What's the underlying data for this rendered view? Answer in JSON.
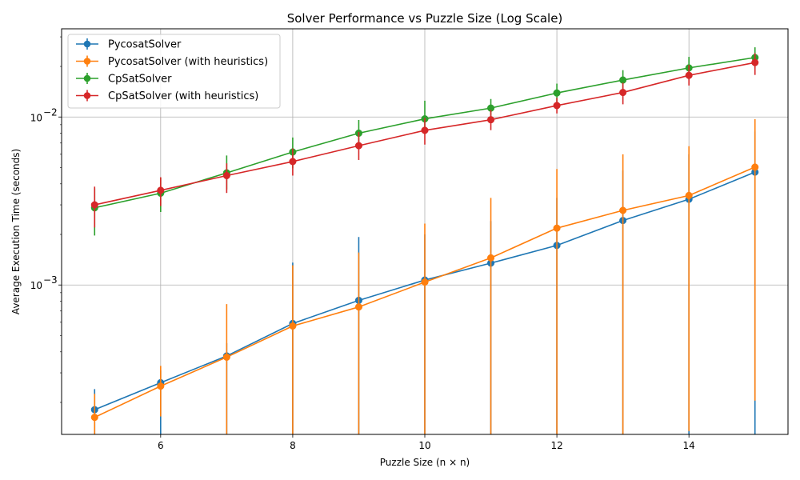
{
  "chart_data": {
    "type": "line",
    "title": "Solver Performance vs Puzzle Size (Log Scale)",
    "xlabel": "Puzzle Size (n × n)",
    "ylabel": "Average Execution Time (seconds)",
    "xlim": [
      4.5,
      15.5
    ],
    "ylim": [
      0.000129,
      0.0335
    ],
    "yscale": "log",
    "grid": true,
    "legend_position": "top-left",
    "x_ticks": [
      6,
      8,
      10,
      12,
      14
    ],
    "y_ticks": [
      {
        "value": 0.001,
        "base": "10",
        "exp": "−3"
      },
      {
        "value": 0.01,
        "base": "10",
        "exp": "−2"
      }
    ],
    "x": [
      5,
      6,
      7,
      8,
      9,
      10,
      11,
      12,
      13,
      14,
      15
    ],
    "series": [
      {
        "name": "PycosatSolver",
        "color": "#1f77b4",
        "values": [
          0.000181,
          0.000262,
          0.000378,
          0.00059,
          0.00081,
          0.00107,
          0.00135,
          0.00172,
          0.00242,
          0.00324,
          0.0047
        ],
        "err_low": [
          0.000125,
          0.000125,
          0.000125,
          0.000125,
          0.000125,
          0.000125,
          0.000125,
          0.000125,
          0.000125,
          0.000125,
          0.000125
        ],
        "err_high": [
          0.00024,
          0.00031,
          0.00045,
          0.00136,
          0.00193,
          0.002,
          0.0024,
          0.0033,
          0.0048,
          0.006,
          0.0082
        ]
      },
      {
        "name": "PycosatSolver (with heuristics)",
        "color": "#ff7f0e",
        "values": [
          0.000163,
          0.00025,
          0.000372,
          0.00057,
          0.00074,
          0.00104,
          0.00145,
          0.00218,
          0.00278,
          0.00341,
          0.00503
        ],
        "err_low": [
          0.000125,
          0.000165,
          0.000125,
          0.000125,
          0.000125,
          0.000125,
          0.000125,
          0.000125,
          0.000125,
          0.000135,
          0.000205
        ],
        "err_high": [
          0.000225,
          0.00033,
          0.00077,
          0.00131,
          0.00156,
          0.00232,
          0.0033,
          0.0049,
          0.006,
          0.0067,
          0.0097
        ]
      },
      {
        "name": "CpSatSolver",
        "color": "#2ca02c",
        "values": [
          0.00288,
          0.00352,
          0.00465,
          0.00619,
          0.00801,
          0.00975,
          0.0113,
          0.0139,
          0.0166,
          0.0196,
          0.0226
        ],
        "err_low": [
          0.00197,
          0.00272,
          0.0037,
          0.00495,
          0.00645,
          0.0079,
          0.00935,
          0.0117,
          0.0142,
          0.0167,
          0.0195
        ],
        "err_high": [
          0.00376,
          0.00435,
          0.0059,
          0.00755,
          0.0096,
          0.0125,
          0.0128,
          0.0158,
          0.019,
          0.0228,
          0.026
        ]
      },
      {
        "name": "CpSatSolver (with heuristics)",
        "color": "#d62728",
        "values": [
          0.003,
          0.00366,
          0.00448,
          0.00543,
          0.00675,
          0.00833,
          0.00963,
          0.0117,
          0.014,
          0.0177,
          0.0211
        ],
        "err_low": [
          0.0022,
          0.00295,
          0.00353,
          0.00448,
          0.00555,
          0.00685,
          0.00835,
          0.0105,
          0.0119,
          0.0154,
          0.0178
        ],
        "err_high": [
          0.00385,
          0.00438,
          0.0053,
          0.0065,
          0.00815,
          0.00985,
          0.011,
          0.013,
          0.016,
          0.0204,
          0.024
        ]
      }
    ]
  }
}
